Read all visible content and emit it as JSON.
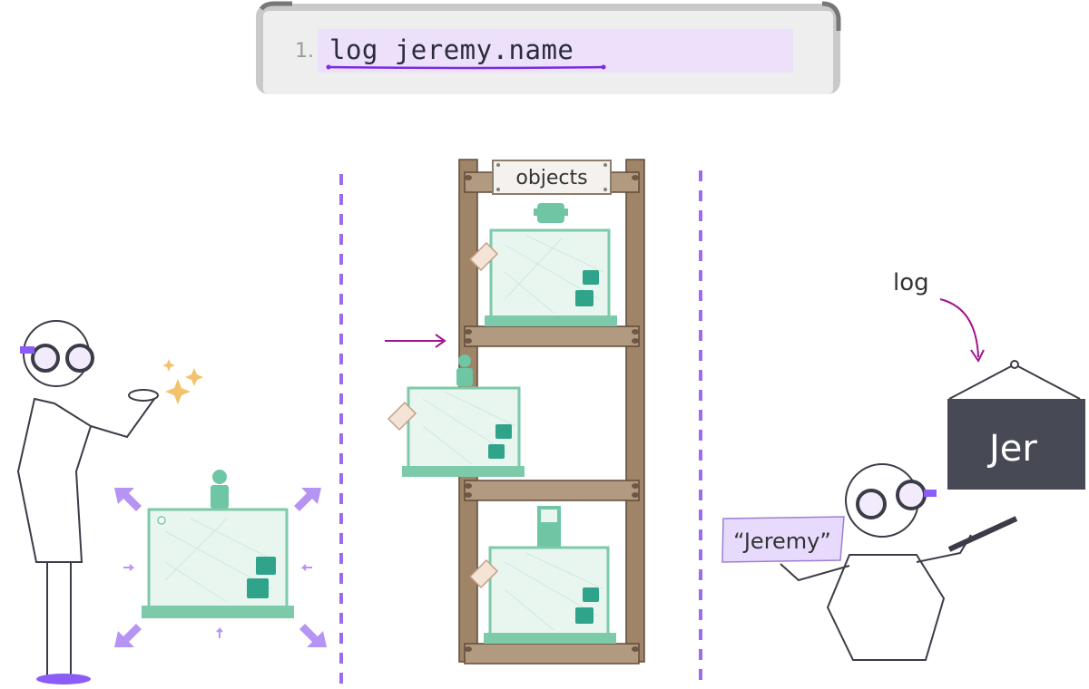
{
  "code": {
    "line_number": "1.",
    "statement": "log jeremy.name"
  },
  "shelf": {
    "label": "objects"
  },
  "sign": {
    "text": "Jer"
  },
  "string_card": {
    "text": "“Jeremy”"
  },
  "log_label": {
    "text": "log"
  },
  "colors": {
    "accent_purple": "#8b5cf6",
    "highlight": "#ede2fb",
    "teal": "#7ccaa9",
    "shelf_wood": "#a08467",
    "sign_dark": "#474a54",
    "arrow_magenta": "#a2148e"
  }
}
